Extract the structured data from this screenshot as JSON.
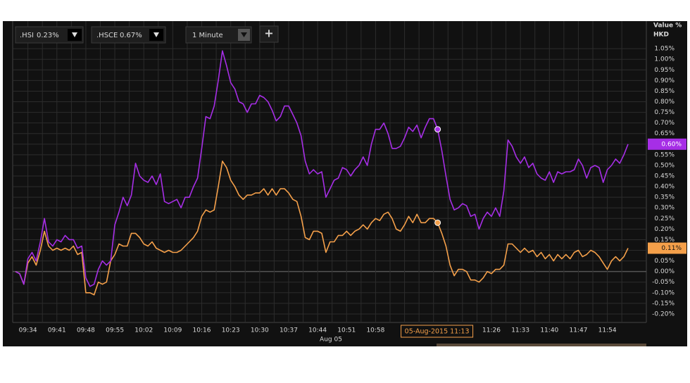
{
  "chart_data": {
    "type": "line",
    "y_axis_title": "Value %",
    "currency": "HKD",
    "interval": "1 Minute",
    "add_button": "+",
    "date_label": "Aug 05",
    "crosshair_label": "05-Aug-2015 11:13",
    "grid": true,
    "ylim": [
      -0.24,
      1.17
    ],
    "yticks": [
      {
        "value": -0.2,
        "label": "-0.20%"
      },
      {
        "value": -0.15,
        "label": "-0.15%"
      },
      {
        "value": -0.1,
        "label": "-0.10%"
      },
      {
        "value": -0.05,
        "label": "-0.05%"
      },
      {
        "value": 0,
        "label": "0.00%"
      },
      {
        "value": 0.05,
        "label": "0.05%"
      },
      {
        "value": 0.1,
        "label": "0.10%"
      },
      {
        "value": 0.15,
        "label": "0.15%"
      },
      {
        "value": 0.2,
        "label": "0.20%"
      },
      {
        "value": 0.25,
        "label": "0.25%"
      },
      {
        "value": 0.3,
        "label": "0.30%"
      },
      {
        "value": 0.35,
        "label": "0.35%"
      },
      {
        "value": 0.4,
        "label": "0.40%"
      },
      {
        "value": 0.45,
        "label": "0.45%"
      },
      {
        "value": 0.5,
        "label": "0.50%"
      },
      {
        "value": 0.55,
        "label": "0.55%"
      },
      {
        "value": 0.6,
        "label": "0.60%"
      },
      {
        "value": 0.65,
        "label": "0.65%"
      },
      {
        "value": 0.7,
        "label": "0.70%"
      },
      {
        "value": 0.75,
        "label": "0.75%"
      },
      {
        "value": 0.8,
        "label": "0.80%"
      },
      {
        "value": 0.85,
        "label": "0.85%"
      },
      {
        "value": 0.9,
        "label": "0.90%"
      },
      {
        "value": 0.95,
        "label": "0.95%"
      },
      {
        "value": 1.0,
        "label": "1.00%"
      },
      {
        "value": 1.05,
        "label": "1.05%"
      }
    ],
    "categories": [
      null,
      null,
      null,
      "09:34",
      null,
      null,
      null,
      null,
      null,
      null,
      "09:41",
      null,
      null,
      null,
      null,
      null,
      null,
      "09:48",
      null,
      null,
      null,
      null,
      null,
      null,
      "09:55",
      null,
      null,
      null,
      null,
      null,
      null,
      "10:02",
      null,
      null,
      null,
      null,
      null,
      null,
      "10:09",
      null,
      null,
      null,
      null,
      null,
      null,
      "10:16",
      null,
      null,
      null,
      null,
      null,
      null,
      "10:23",
      null,
      null,
      null,
      null,
      null,
      null,
      "10:30",
      null,
      null,
      null,
      null,
      null,
      null,
      "10:37",
      null,
      null,
      null,
      null,
      null,
      null,
      "10:44",
      null,
      null,
      null,
      null,
      null,
      null,
      "10:51",
      null,
      null,
      null,
      null,
      null,
      null,
      "10:58",
      null,
      null,
      null,
      null,
      null,
      null,
      null,
      null,
      null,
      null,
      null,
      null,
      null,
      null,
      null,
      null,
      null,
      null,
      null,
      null,
      null,
      null,
      null,
      null,
      null,
      null,
      null,
      "11:26",
      null,
      null,
      null,
      null,
      null,
      null,
      "11:33",
      null,
      null,
      null,
      null,
      null,
      null,
      "11:40",
      null,
      null,
      null,
      null,
      null,
      null,
      "11:47",
      null,
      null,
      null,
      null,
      null,
      null,
      "11:54",
      null,
      null,
      null,
      null,
      null
    ],
    "series": [
      {
        "name": ".HSI",
        "hover_label": "0.23%",
        "last_label": "0.11%",
        "color": "#f5a04a",
        "values": [
          0.0,
          -0.01,
          -0.06,
          0.04,
          0.07,
          0.03,
          0.1,
          0.19,
          0.12,
          0.1,
          0.11,
          0.1,
          0.11,
          0.1,
          0.12,
          0.08,
          0.09,
          -0.1,
          -0.1,
          -0.11,
          -0.05,
          -0.06,
          -0.05,
          0.05,
          0.08,
          0.13,
          0.12,
          0.12,
          0.18,
          0.18,
          0.16,
          0.13,
          0.12,
          0.14,
          0.11,
          0.1,
          0.09,
          0.1,
          0.09,
          0.09,
          0.1,
          0.12,
          0.14,
          0.16,
          0.19,
          0.26,
          0.29,
          0.28,
          0.29,
          0.4,
          0.52,
          0.49,
          0.43,
          0.4,
          0.36,
          0.34,
          0.36,
          0.36,
          0.37,
          0.37,
          0.39,
          0.36,
          0.39,
          0.36,
          0.39,
          0.39,
          0.37,
          0.34,
          0.33,
          0.26,
          0.16,
          0.15,
          0.19,
          0.19,
          0.18,
          0.09,
          0.14,
          0.14,
          0.17,
          0.17,
          0.19,
          0.17,
          0.19,
          0.2,
          0.22,
          0.2,
          0.23,
          0.25,
          0.24,
          0.27,
          0.28,
          0.25,
          0.2,
          0.19,
          0.22,
          0.26,
          0.23,
          0.27,
          0.23,
          0.23,
          0.25,
          0.25,
          0.23,
          0.18,
          0.12,
          0.03,
          -0.02,
          0.01,
          0.01,
          0.0,
          -0.04,
          -0.04,
          -0.05,
          -0.03,
          0.0,
          -0.01,
          0.01,
          0.01,
          0.03,
          0.13,
          0.13,
          0.11,
          0.09,
          0.11,
          0.09,
          0.1,
          0.07,
          0.09,
          0.06,
          0.08,
          0.05,
          0.08,
          0.06,
          0.08,
          0.06,
          0.09,
          0.1,
          0.07,
          0.08,
          0.1,
          0.09,
          0.07,
          0.04,
          0.01,
          0.05,
          0.07,
          0.05,
          0.07,
          0.11
        ]
      },
      {
        "name": ".HSCE",
        "hover_label": "0.67%",
        "last_label": "0.60%",
        "color": "#a62ee6",
        "values": [
          0.0,
          -0.01,
          -0.06,
          0.06,
          0.09,
          0.05,
          0.14,
          0.25,
          0.14,
          0.12,
          0.15,
          0.14,
          0.17,
          0.15,
          0.15,
          0.11,
          0.12,
          -0.03,
          -0.07,
          -0.06,
          0.01,
          0.05,
          0.03,
          0.05,
          0.22,
          0.28,
          0.35,
          0.31,
          0.36,
          0.51,
          0.45,
          0.43,
          0.42,
          0.45,
          0.41,
          0.46,
          0.33,
          0.32,
          0.33,
          0.34,
          0.3,
          0.35,
          0.35,
          0.4,
          0.44,
          0.58,
          0.73,
          0.72,
          0.78,
          0.9,
          1.04,
          0.97,
          0.89,
          0.86,
          0.8,
          0.79,
          0.75,
          0.79,
          0.79,
          0.83,
          0.82,
          0.8,
          0.76,
          0.71,
          0.73,
          0.78,
          0.78,
          0.74,
          0.7,
          0.64,
          0.52,
          0.46,
          0.48,
          0.46,
          0.47,
          0.35,
          0.39,
          0.43,
          0.44,
          0.49,
          0.48,
          0.45,
          0.48,
          0.5,
          0.54,
          0.5,
          0.6,
          0.67,
          0.67,
          0.7,
          0.65,
          0.58,
          0.58,
          0.59,
          0.63,
          0.68,
          0.66,
          0.69,
          0.63,
          0.68,
          0.72,
          0.72,
          0.67,
          0.57,
          0.45,
          0.34,
          0.29,
          0.3,
          0.32,
          0.31,
          0.26,
          0.27,
          0.2,
          0.25,
          0.28,
          0.26,
          0.3,
          0.26,
          0.38,
          0.62,
          0.59,
          0.54,
          0.51,
          0.54,
          0.49,
          0.51,
          0.46,
          0.44,
          0.43,
          0.47,
          0.42,
          0.47,
          0.46,
          0.47,
          0.47,
          0.48,
          0.53,
          0.5,
          0.44,
          0.49,
          0.5,
          0.49,
          0.42,
          0.48,
          0.5,
          0.53,
          0.51,
          0.55,
          0.6
        ]
      }
    ]
  }
}
